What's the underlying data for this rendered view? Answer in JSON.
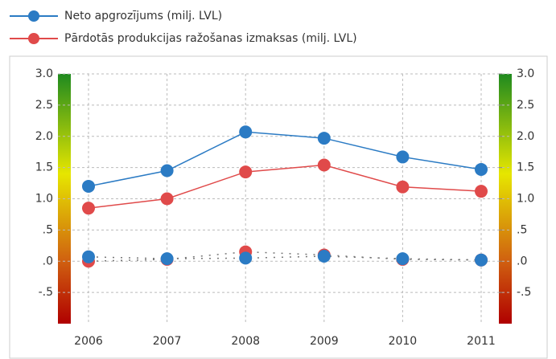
{
  "chart_data": {
    "type": "line",
    "categories": [
      "2006",
      "2007",
      "2008",
      "2009",
      "2010",
      "2011"
    ],
    "series": [
      {
        "name": "Neto apgrozījums (milj. LVL)",
        "color": "#2b7bc4",
        "values": [
          1.2,
          1.45,
          2.07,
          1.97,
          1.67,
          1.47
        ]
      },
      {
        "name": "Pārdotās produkcijas ražošanas izmaksas (milj. LVL)",
        "color": "#e04a4a",
        "values": [
          0.85,
          1.0,
          1.43,
          1.54,
          1.19,
          1.12
        ]
      },
      {
        "color": "#e04a4a",
        "dashed": true,
        "values": [
          0.0,
          0.03,
          0.15,
          0.1,
          0.03,
          0.02
        ]
      },
      {
        "color": "#2b7bc4",
        "dashed": true,
        "values": [
          0.07,
          0.04,
          0.05,
          0.08,
          0.04,
          0.02
        ]
      }
    ],
    "ylim": [
      -1,
      3
    ],
    "yticks": [
      {
        "value": 3,
        "label": "3.0"
      },
      2.5,
      {
        "value": 2,
        "label": "2.0"
      },
      1.5,
      {
        "value": 1,
        "label": "1.0"
      },
      {
        "value": 0.5,
        "label": ".5"
      },
      {
        "value": 0,
        "label": ".0"
      },
      {
        "value": -0.5,
        "label": "-.5"
      }
    ],
    "y2lim": [
      -1,
      3
    ],
    "y2ticks": [
      {
        "value": 3,
        "label": "3.0"
      },
      2.5,
      {
        "value": 2,
        "label": "2.0"
      },
      1.5,
      {
        "value": 1,
        "label": "1.0"
      },
      {
        "value": 0.5,
        "label": ".5"
      },
      {
        "value": 0,
        "label": ".0"
      },
      {
        "value": -0.5,
        "label": "-.5"
      }
    ],
    "grid": true
  }
}
